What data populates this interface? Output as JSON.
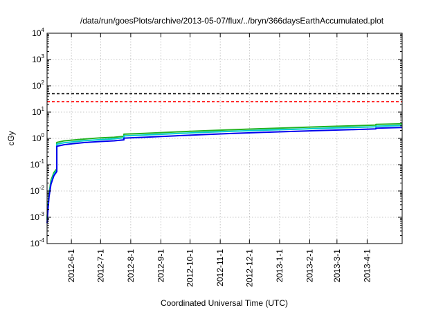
{
  "chart_data": {
    "type": "line",
    "title": "/data/run/goesPlots/archive/2013-05-07/flux/../bryn/366daysEarthAccumulated.plot",
    "xlabel": "Coordinated Universal Time (UTC)",
    "ylabel": "cGy",
    "y_scale": "log",
    "ylim": [
      0.0001,
      10000
    ],
    "y_tick_labels": [
      {
        "base": "10",
        "exp": "-4"
      },
      {
        "base": "10",
        "exp": "-3"
      },
      {
        "base": "10",
        "exp": "-2"
      },
      {
        "base": "10",
        "exp": "-1"
      },
      {
        "base": "10",
        "exp": "0"
      },
      {
        "base": "10",
        "exp": "1"
      },
      {
        "base": "10",
        "exp": "2"
      },
      {
        "base": "10",
        "exp": "3"
      },
      {
        "base": "10",
        "exp": "4"
      }
    ],
    "xlim": [
      "2012-05-07",
      "2013-05-07"
    ],
    "x_ticks": [
      "2012-06-01",
      "2012-07-01",
      "2012-08-01",
      "2012-09-01",
      "2012-10-01",
      "2012-11-01",
      "2012-12-01",
      "2013-01-01",
      "2013-02-01",
      "2013-03-01",
      "2013-04-01"
    ],
    "x_tick_labels": [
      "2012-6-1",
      "2012-7-1",
      "2012-8-1",
      "2012-9-1",
      "2012-10-1",
      "2012-11-1",
      "2012-12-1",
      "2013-1-1",
      "2013-2-1",
      "2013-3-1",
      "2013-4-1"
    ],
    "grid": true,
    "reference_lines": [
      {
        "y": 50,
        "color": "#000000",
        "style": "dashed"
      },
      {
        "y": 25,
        "color": "#ff0000",
        "style": "dashed"
      }
    ],
    "series": [
      {
        "color": "#22b322",
        "x": [
          "2012-05-07",
          "2012-05-08",
          "2012-05-09",
          "2012-05-11",
          "2012-05-14",
          "2012-05-17",
          "2012-05-17",
          "2012-05-24",
          "2012-06-01",
          "2012-06-15",
          "2012-07-01",
          "2012-07-15",
          "2012-07-25",
          "2012-07-25",
          "2012-08-15",
          "2012-09-15",
          "2012-10-15",
          "2012-11-15",
          "2012-12-15",
          "2013-01-15",
          "2013-02-15",
          "2013-03-15",
          "2013-04-10",
          "2013-04-10",
          "2013-05-07"
        ],
        "y": [
          0.0009,
          0.003,
          0.008,
          0.025,
          0.05,
          0.07,
          0.7,
          0.8,
          0.85,
          0.95,
          1.05,
          1.1,
          1.2,
          1.45,
          1.55,
          1.75,
          1.95,
          2.15,
          2.35,
          2.55,
          2.8,
          3.0,
          3.2,
          3.4,
          3.6
        ]
      },
      {
        "color": "#00cccc",
        "x": [
          "2012-05-07",
          "2012-05-08",
          "2012-05-09",
          "2012-05-11",
          "2012-05-14",
          "2012-05-17",
          "2012-05-17",
          "2012-05-24",
          "2012-06-01",
          "2012-06-15",
          "2012-07-01",
          "2012-07-15",
          "2012-07-25",
          "2012-07-25",
          "2012-08-15",
          "2012-09-15",
          "2012-10-15",
          "2012-11-15",
          "2012-12-15",
          "2013-01-15",
          "2013-02-15",
          "2013-03-15",
          "2013-04-10",
          "2013-04-10",
          "2013-05-07"
        ],
        "y": [
          0.0008,
          0.0026,
          0.007,
          0.021,
          0.043,
          0.062,
          0.6,
          0.68,
          0.73,
          0.82,
          0.9,
          0.96,
          1.05,
          1.25,
          1.34,
          1.52,
          1.7,
          1.88,
          2.05,
          2.22,
          2.42,
          2.6,
          2.75,
          2.92,
          3.1
        ]
      },
      {
        "color": "#0000ee",
        "x": [
          "2012-05-07",
          "2012-05-08",
          "2012-05-09",
          "2012-05-11",
          "2012-05-14",
          "2012-05-17",
          "2012-05-17",
          "2012-05-24",
          "2012-06-01",
          "2012-06-15",
          "2012-07-01",
          "2012-07-15",
          "2012-07-25",
          "2012-07-25",
          "2012-08-15",
          "2012-09-15",
          "2012-10-15",
          "2012-11-15",
          "2012-12-15",
          "2013-01-15",
          "2013-02-15",
          "2013-03-15",
          "2013-04-10",
          "2013-04-10",
          "2013-05-07"
        ],
        "y": [
          0.0006,
          0.002,
          0.006,
          0.018,
          0.038,
          0.055,
          0.5,
          0.57,
          0.62,
          0.7,
          0.76,
          0.81,
          0.88,
          1.02,
          1.1,
          1.25,
          1.4,
          1.55,
          1.7,
          1.85,
          2.0,
          2.15,
          2.3,
          2.45,
          2.6
        ]
      }
    ]
  }
}
